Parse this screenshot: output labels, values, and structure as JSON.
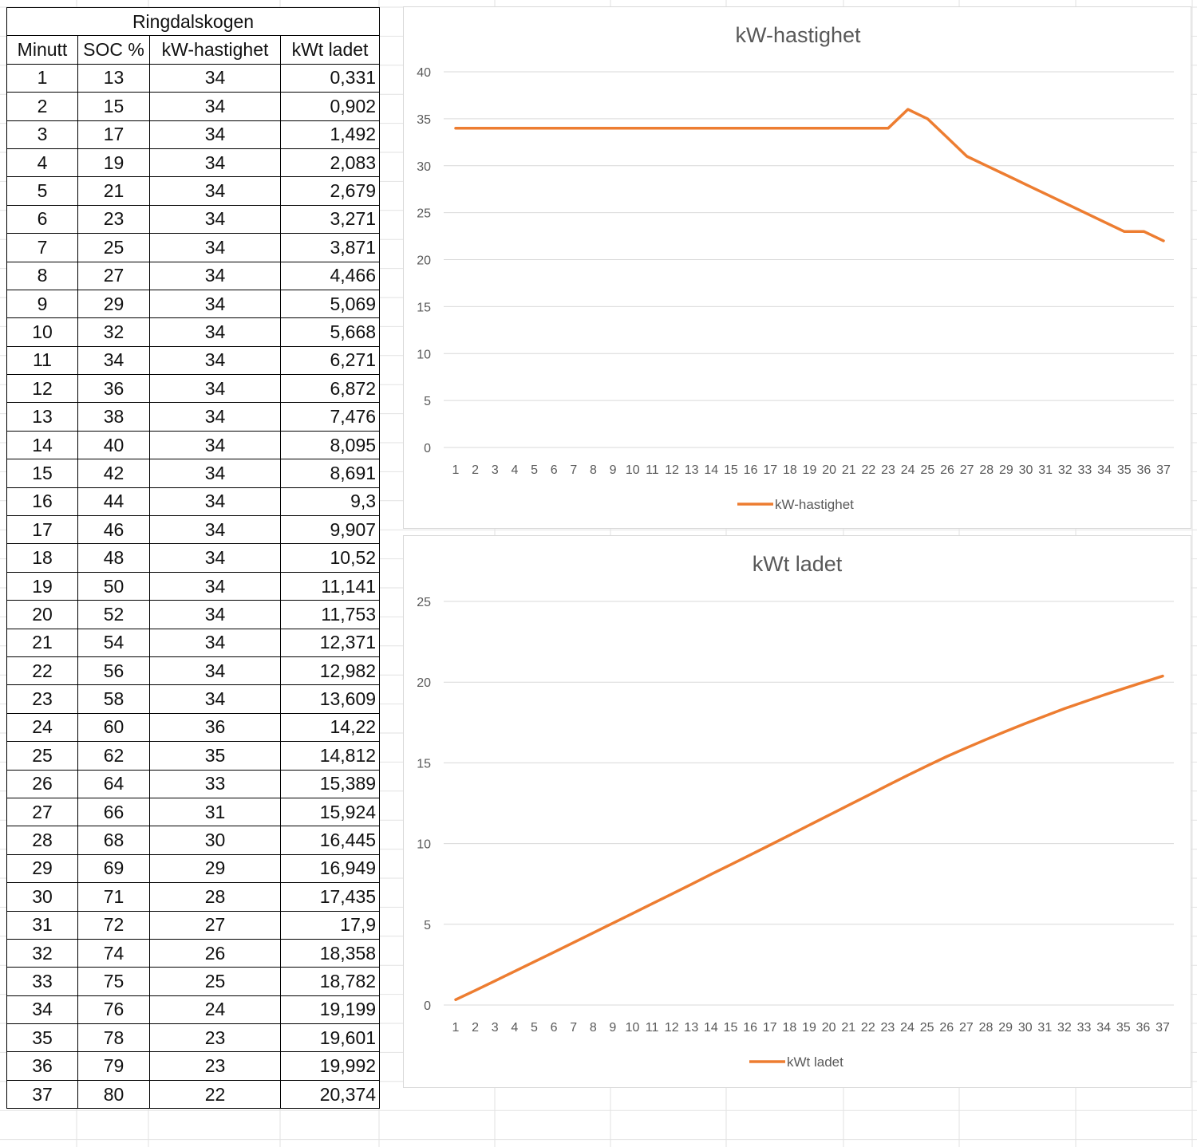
{
  "table": {
    "title": "Ringdalskogen",
    "headers": [
      "Minutt",
      "SOC %",
      "kW-hastighet",
      "kWt ladet"
    ],
    "rows": [
      [
        "1",
        "13",
        "34",
        "0,331"
      ],
      [
        "2",
        "15",
        "34",
        "0,902"
      ],
      [
        "3",
        "17",
        "34",
        "1,492"
      ],
      [
        "4",
        "19",
        "34",
        "2,083"
      ],
      [
        "5",
        "21",
        "34",
        "2,679"
      ],
      [
        "6",
        "23",
        "34",
        "3,271"
      ],
      [
        "7",
        "25",
        "34",
        "3,871"
      ],
      [
        "8",
        "27",
        "34",
        "4,466"
      ],
      [
        "9",
        "29",
        "34",
        "5,069"
      ],
      [
        "10",
        "32",
        "34",
        "5,668"
      ],
      [
        "11",
        "34",
        "34",
        "6,271"
      ],
      [
        "12",
        "36",
        "34",
        "6,872"
      ],
      [
        "13",
        "38",
        "34",
        "7,476"
      ],
      [
        "14",
        "40",
        "34",
        "8,095"
      ],
      [
        "15",
        "42",
        "34",
        "8,691"
      ],
      [
        "16",
        "44",
        "34",
        "9,3"
      ],
      [
        "17",
        "46",
        "34",
        "9,907"
      ],
      [
        "18",
        "48",
        "34",
        "10,52"
      ],
      [
        "19",
        "50",
        "34",
        "11,141"
      ],
      [
        "20",
        "52",
        "34",
        "11,753"
      ],
      [
        "21",
        "54",
        "34",
        "12,371"
      ],
      [
        "22",
        "56",
        "34",
        "12,982"
      ],
      [
        "23",
        "58",
        "34",
        "13,609"
      ],
      [
        "24",
        "60",
        "36",
        "14,22"
      ],
      [
        "25",
        "62",
        "35",
        "14,812"
      ],
      [
        "26",
        "64",
        "33",
        "15,389"
      ],
      [
        "27",
        "66",
        "31",
        "15,924"
      ],
      [
        "28",
        "68",
        "30",
        "16,445"
      ],
      [
        "29",
        "69",
        "29",
        "16,949"
      ],
      [
        "30",
        "71",
        "28",
        "17,435"
      ],
      [
        "31",
        "72",
        "27",
        "17,9"
      ],
      [
        "32",
        "74",
        "26",
        "18,358"
      ],
      [
        "33",
        "75",
        "25",
        "18,782"
      ],
      [
        "34",
        "76",
        "24",
        "19,199"
      ],
      [
        "35",
        "78",
        "23",
        "19,601"
      ],
      [
        "36",
        "79",
        "23",
        "19,992"
      ],
      [
        "37",
        "80",
        "22",
        "20,374"
      ]
    ]
  },
  "chart_data": [
    {
      "type": "line",
      "title": "kW-hastighet",
      "xlabel": "",
      "ylabel": "",
      "categories": [
        "1",
        "2",
        "3",
        "4",
        "5",
        "6",
        "7",
        "8",
        "9",
        "10",
        "11",
        "12",
        "13",
        "14",
        "15",
        "16",
        "17",
        "18",
        "19",
        "20",
        "21",
        "22",
        "23",
        "24",
        "25",
        "26",
        "27",
        "28",
        "29",
        "30",
        "31",
        "32",
        "33",
        "34",
        "35",
        "36",
        "37"
      ],
      "series": [
        {
          "name": "kW-hastighet",
          "color": "#ED7D31",
          "values": [
            34,
            34,
            34,
            34,
            34,
            34,
            34,
            34,
            34,
            34,
            34,
            34,
            34,
            34,
            34,
            34,
            34,
            34,
            34,
            34,
            34,
            34,
            34,
            36,
            35,
            33,
            31,
            30,
            29,
            28,
            27,
            26,
            25,
            24,
            23,
            23,
            22
          ]
        }
      ],
      "ylim": [
        0,
        40
      ],
      "yticks": [
        "0",
        "5",
        "10",
        "15",
        "20",
        "25",
        "30",
        "35",
        "40"
      ],
      "grid": true,
      "legend": "bottom"
    },
    {
      "type": "line",
      "title": "kWt ladet",
      "xlabel": "",
      "ylabel": "",
      "categories": [
        "1",
        "2",
        "3",
        "4",
        "5",
        "6",
        "7",
        "8",
        "9",
        "10",
        "11",
        "12",
        "13",
        "14",
        "15",
        "16",
        "17",
        "18",
        "19",
        "20",
        "21",
        "22",
        "23",
        "24",
        "25",
        "26",
        "27",
        "28",
        "29",
        "30",
        "31",
        "32",
        "33",
        "34",
        "35",
        "36",
        "37"
      ],
      "series": [
        {
          "name": "kWt ladet",
          "color": "#ED7D31",
          "values": [
            0.331,
            0.902,
            1.492,
            2.083,
            2.679,
            3.271,
            3.871,
            4.466,
            5.069,
            5.668,
            6.271,
            6.872,
            7.476,
            8.095,
            8.691,
            9.3,
            9.907,
            10.52,
            11.141,
            11.753,
            12.371,
            12.982,
            13.609,
            14.22,
            14.812,
            15.389,
            15.924,
            16.445,
            16.949,
            17.435,
            17.9,
            18.358,
            18.782,
            19.199,
            19.601,
            19.992,
            20.374
          ]
        }
      ],
      "ylim": [
        0,
        25
      ],
      "yticks": [
        "0",
        "5",
        "10",
        "15",
        "20",
        "25"
      ],
      "grid": true,
      "legend": "bottom"
    }
  ]
}
